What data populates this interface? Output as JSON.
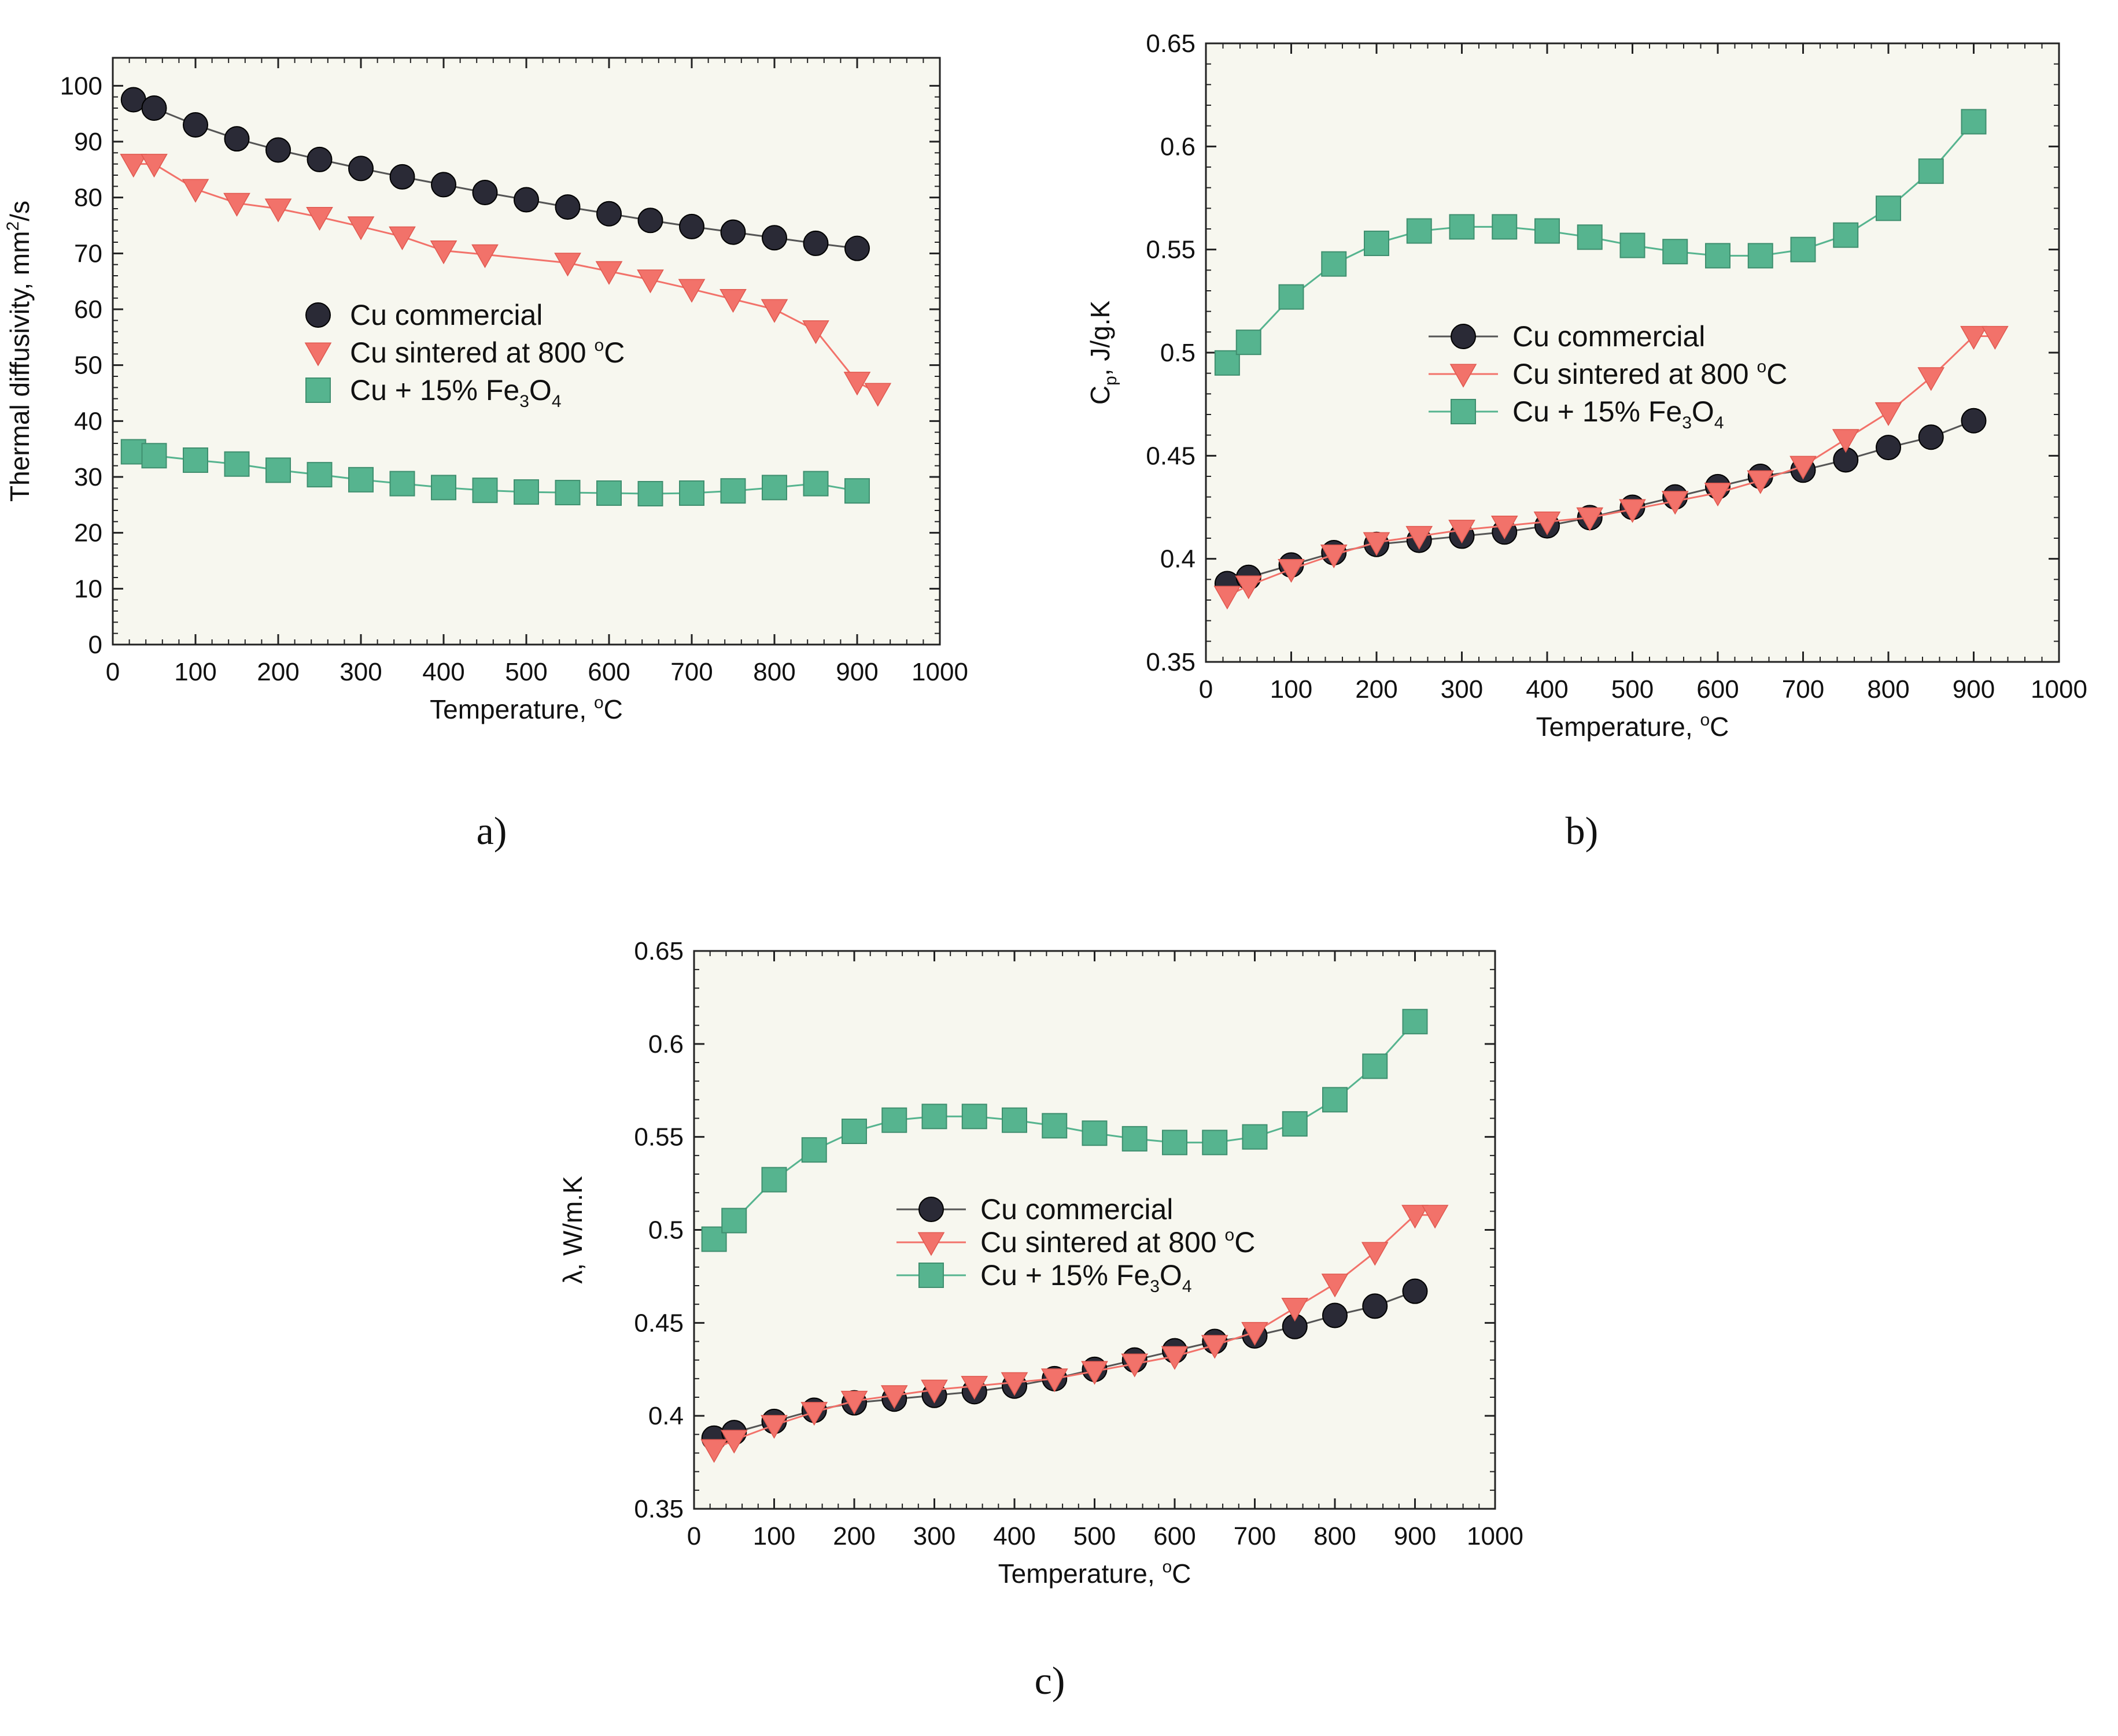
{
  "colors": {
    "commercial": "#2a2a36",
    "sintered": "#f2726a",
    "fe3o4": "#56b48f",
    "plot_bg": "#f7f7ef"
  },
  "chart_data": [
    {
      "type": "line",
      "panel": "a",
      "caption": "a)",
      "xlabel": "Temperature, ",
      "xlabel_sup": "o",
      "xlabel_unit": "C",
      "ylabel": "Thermal diffusivity, mm",
      "ylabel_sup": "2",
      "ylabel_tail": "/s",
      "xlim": [
        0,
        1000
      ],
      "ylim": [
        0,
        105
      ],
      "xticks": [
        0,
        100,
        200,
        300,
        400,
        500,
        600,
        700,
        800,
        900,
        1000
      ],
      "yticks": [
        0,
        10,
        20,
        30,
        40,
        50,
        60,
        70,
        80,
        90,
        100
      ],
      "legend": {
        "entries": [
          {
            "label": "Cu commercial"
          },
          {
            "label": "Cu sintered at 800 ",
            "sup": "o",
            "tail": "C"
          },
          {
            "label": "Cu + 15% Fe",
            "sub1": "3",
            "mid": "O",
            "sub2": "4"
          }
        ],
        "placement": "center-left",
        "show_lines": false
      },
      "series": [
        {
          "name": "Cu commercial",
          "marker": "circle",
          "color_key": "commercial",
          "x": [
            25,
            50,
            100,
            150,
            200,
            250,
            300,
            350,
            400,
            450,
            500,
            550,
            600,
            650,
            700,
            750,
            800,
            850,
            900
          ],
          "y": [
            97.5,
            96,
            93,
            90.5,
            88.5,
            86.8,
            85.2,
            83.7,
            82.3,
            80.9,
            79.6,
            78.3,
            77.1,
            75.9,
            74.8,
            73.8,
            72.8,
            71.8,
            70.9
          ]
        },
        {
          "name": "Cu sintered at 800 oC",
          "marker": "triangle-down",
          "color_key": "sintered",
          "x": [
            25,
            50,
            100,
            150,
            200,
            250,
            300,
            350,
            400,
            450,
            550,
            600,
            650,
            700,
            750,
            800,
            850,
            900,
            925
          ],
          "y": [
            86,
            86,
            81.5,
            79,
            78,
            76.5,
            74.8,
            73,
            70.5,
            69.8,
            68.3,
            66.8,
            65.3,
            63.6,
            61.8,
            60,
            56.2,
            47,
            45
          ]
        },
        {
          "name": "Cu + 15% Fe3O4",
          "marker": "square",
          "color_key": "fe3o4",
          "x": [
            25,
            50,
            100,
            150,
            200,
            250,
            300,
            350,
            400,
            450,
            500,
            550,
            600,
            650,
            700,
            750,
            800,
            850,
            900
          ],
          "y": [
            34.5,
            33.8,
            33,
            32.3,
            31.2,
            30.4,
            29.5,
            28.8,
            28.1,
            27.6,
            27.3,
            27.2,
            27.1,
            27,
            27.1,
            27.5,
            28.1,
            28.8,
            27.5
          ]
        }
      ]
    },
    {
      "type": "line",
      "panel": "b",
      "caption": "b)",
      "xlabel": "Temperature, ",
      "xlabel_sup": "o",
      "xlabel_unit": "C",
      "ylabel": "C",
      "ylabel_sub": "p",
      "ylabel_tail": ",  J/g.K",
      "xlim": [
        0,
        1000
      ],
      "ylim": [
        0.35,
        0.65
      ],
      "xticks": [
        0,
        100,
        200,
        300,
        400,
        500,
        600,
        700,
        800,
        900,
        1000
      ],
      "yticks": [
        0.35,
        0.4,
        0.45,
        0.5,
        0.55,
        0.6,
        0.65
      ],
      "legend": {
        "entries": [
          {
            "label": "Cu commercial"
          },
          {
            "label": "Cu sintered at 800 ",
            "sup": "o",
            "tail": "C"
          },
          {
            "label": "Cu + 15% Fe",
            "sub1": "3",
            "mid": "O",
            "sub2": "4"
          }
        ],
        "placement": "center",
        "show_lines": true
      },
      "series": [
        {
          "name": "Cu commercial",
          "marker": "circle",
          "color_key": "commercial",
          "x": [
            25,
            50,
            100,
            150,
            200,
            250,
            300,
            350,
            400,
            450,
            500,
            550,
            600,
            650,
            700,
            750,
            800,
            850,
            900
          ],
          "y": [
            0.388,
            0.391,
            0.397,
            0.403,
            0.407,
            0.409,
            0.411,
            0.413,
            0.416,
            0.42,
            0.425,
            0.43,
            0.435,
            0.44,
            0.443,
            0.448,
            0.454,
            0.459,
            0.467
          ]
        },
        {
          "name": "Cu sintered at 800 oC",
          "marker": "triangle-down",
          "color_key": "sintered",
          "x": [
            25,
            50,
            100,
            150,
            200,
            250,
            300,
            350,
            400,
            450,
            500,
            550,
            600,
            650,
            700,
            750,
            800,
            850,
            900,
            925
          ],
          "y": [
            0.382,
            0.387,
            0.395,
            0.402,
            0.408,
            0.411,
            0.414,
            0.416,
            0.418,
            0.42,
            0.424,
            0.428,
            0.432,
            0.438,
            0.445,
            0.458,
            0.471,
            0.488,
            0.508,
            0.508
          ]
        },
        {
          "name": "Cu + 15% Fe3O4",
          "marker": "square",
          "color_key": "fe3o4",
          "x": [
            25,
            50,
            100,
            150,
            200,
            250,
            300,
            350,
            400,
            450,
            500,
            550,
            600,
            650,
            700,
            750,
            800,
            850,
            900
          ],
          "y": [
            0.495,
            0.505,
            0.527,
            0.543,
            0.553,
            0.559,
            0.561,
            0.561,
            0.559,
            0.556,
            0.552,
            0.549,
            0.547,
            0.547,
            0.55,
            0.557,
            0.57,
            0.588,
            0.612
          ]
        }
      ]
    },
    {
      "type": "line",
      "panel": "c",
      "caption": "c)",
      "xlabel": "Temperature, ",
      "xlabel_sup": "o",
      "xlabel_unit": "C",
      "ylabel": "λ, W/m.K",
      "xlim": [
        0,
        1000
      ],
      "ylim": [
        0.35,
        0.65
      ],
      "xticks": [
        0,
        100,
        200,
        300,
        400,
        500,
        600,
        700,
        800,
        900,
        1000
      ],
      "yticks": [
        0.35,
        0.4,
        0.45,
        0.5,
        0.55,
        0.6,
        0.65
      ],
      "legend": {
        "entries": [
          {
            "label": "Cu commercial"
          },
          {
            "label": "Cu sintered at 800 ",
            "sup": "o",
            "tail": "C"
          },
          {
            "label": "Cu + 15% Fe",
            "sub1": "3",
            "mid": "O",
            "sub2": "4"
          }
        ],
        "placement": "center",
        "show_lines": true
      },
      "series": [
        {
          "name": "Cu commercial",
          "marker": "circle",
          "color_key": "commercial",
          "x": [
            25,
            50,
            100,
            150,
            200,
            250,
            300,
            350,
            400,
            450,
            500,
            550,
            600,
            650,
            700,
            750,
            800,
            850,
            900
          ],
          "y": [
            0.388,
            0.391,
            0.397,
            0.403,
            0.407,
            0.409,
            0.411,
            0.413,
            0.416,
            0.42,
            0.425,
            0.43,
            0.435,
            0.44,
            0.443,
            0.448,
            0.454,
            0.459,
            0.467
          ]
        },
        {
          "name": "Cu sintered at 800 oC",
          "marker": "triangle-down",
          "color_key": "sintered",
          "x": [
            25,
            50,
            100,
            150,
            200,
            250,
            300,
            350,
            400,
            450,
            500,
            550,
            600,
            650,
            700,
            750,
            800,
            850,
            900,
            925
          ],
          "y": [
            0.382,
            0.387,
            0.395,
            0.402,
            0.408,
            0.411,
            0.414,
            0.416,
            0.418,
            0.42,
            0.424,
            0.428,
            0.432,
            0.438,
            0.445,
            0.458,
            0.471,
            0.488,
            0.508,
            0.508
          ]
        },
        {
          "name": "Cu + 15% Fe3O4",
          "marker": "square",
          "color_key": "fe3o4",
          "x": [
            25,
            50,
            100,
            150,
            200,
            250,
            300,
            350,
            400,
            450,
            500,
            550,
            600,
            650,
            700,
            750,
            800,
            850,
            900
          ],
          "y": [
            0.495,
            0.505,
            0.527,
            0.543,
            0.553,
            0.559,
            0.561,
            0.561,
            0.559,
            0.556,
            0.552,
            0.549,
            0.547,
            0.547,
            0.55,
            0.557,
            0.57,
            0.588,
            0.612
          ]
        }
      ]
    }
  ]
}
